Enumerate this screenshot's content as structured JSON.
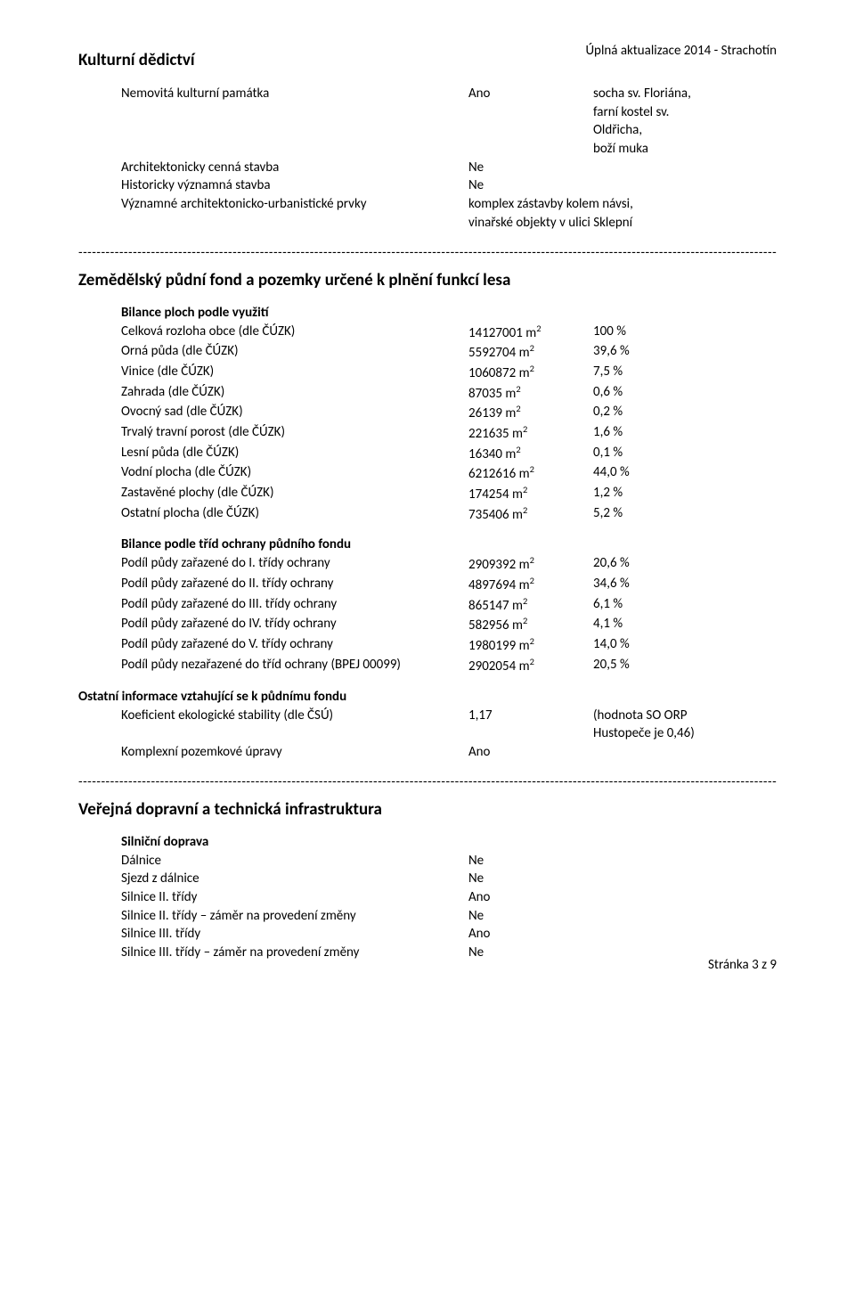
{
  "header_right": "Úplná aktualizace 2014 - Strachotín",
  "footer_right": "Stránka 3 z 9",
  "divider": "--------------------------------------------------------------------------------------------------------------------------------------------------------------",
  "kulturni": {
    "title": "Kulturní dědictví",
    "r1_label": "Nemovitá kulturní památka",
    "r1_mid": "Ano",
    "r1_right_1": "socha sv. Floriána,",
    "r1_right_2": "farní kostel sv.",
    "r1_right_3": "Oldřicha,",
    "r1_right_4": "boží muka",
    "r2_label": "Architektonicky cenná stavba",
    "r2_mid": "Ne",
    "r3_label": "Historicky významná stavba",
    "r3_mid": "Ne",
    "r4_label": "Významné architektonicko-urbanistické prvky",
    "r4_mid_1": "komplex zástavby kolem návsi,",
    "r4_mid_2": "vinařské objekty v ulici Sklepní"
  },
  "zem": {
    "title": "Zemědělský půdní fond a pozemky určené k plnění funkcí lesa",
    "bilance1_head": "Bilance ploch podle využití",
    "rows1": [
      {
        "label": "Celková rozloha obce (dle ČÚZK)",
        "val": "14127001 m",
        "pct": "100 %"
      },
      {
        "label": "Orná půda (dle ČÚZK)",
        "val": "5592704 m",
        "pct": "39,6 %"
      },
      {
        "label": "Vinice (dle ČÚZK)",
        "val": "1060872 m",
        "pct": "7,5 %"
      },
      {
        "label": "Zahrada (dle ČÚZK)",
        "val": "87035 m",
        "pct": "0,6 %"
      },
      {
        "label": "Ovocný sad (dle ČÚZK)",
        "val": "26139 m",
        "pct": "0,2 %"
      },
      {
        "label": "Trvalý travní porost (dle ČÚZK)",
        "val": "221635 m",
        "pct": "1,6 %"
      },
      {
        "label": "Lesní půda (dle ČÚZK)",
        "val": "16340 m",
        "pct": "0,1 %"
      },
      {
        "label": "Vodní plocha (dle ČÚZK)",
        "val": "6212616 m",
        "pct": "44,0 %"
      },
      {
        "label": "Zastavěné plochy (dle ČÚZK)",
        "val": "174254 m",
        "pct": "1,2 %"
      },
      {
        "label": "Ostatní plocha (dle ČÚZK)",
        "val": "735406 m",
        "pct": "5,2 %"
      }
    ],
    "bilance2_head": "Bilance podle tříd ochrany půdního fondu",
    "rows2": [
      {
        "label": "Podíl půdy zařazené do I. třídy ochrany",
        "val": "2909392 m",
        "pct": "20,6 %"
      },
      {
        "label": "Podíl půdy zařazené do II. třídy ochrany",
        "val": "4897694 m",
        "pct": "34,6 %"
      },
      {
        "label": "Podíl půdy zařazené do III. třídy ochrany",
        "val": "865147 m",
        "pct": "6,1 %"
      },
      {
        "label": "Podíl půdy zařazené do IV. třídy ochrany",
        "val": "582956 m",
        "pct": "4,1 %"
      },
      {
        "label": "Podíl půdy zařazené do V. třídy ochrany",
        "val": "1980199 m",
        "pct": "14,0 %"
      },
      {
        "label": "Podíl půdy nezařazené do tříd ochrany (BPEJ 00099)",
        "val": "2902054 m",
        "pct": "20,5 %"
      }
    ],
    "ostatni_head": "Ostatní informace vztahující se k půdnímu fondu",
    "koef_label": "Koeficient ekologické stability (dle ČSÚ)",
    "koef_val": "1,17",
    "koef_right_1": "(hodnota SO ORP",
    "koef_right_2": "Hustopeče je 0,46)",
    "komplex_label": "Komplexní pozemkové úpravy",
    "komplex_val": "Ano"
  },
  "doprava": {
    "title": "Veřejná dopravní a technická infrastruktura",
    "subhead": "Silniční doprava",
    "rows": [
      {
        "label": "Dálnice",
        "val": "Ne"
      },
      {
        "label": "Sjezd z dálnice",
        "val": "Ne"
      },
      {
        "label": "Silnice II. třídy",
        "val": "Ano"
      },
      {
        "label": "Silnice II. třídy – záměr na provedení změny",
        "val": "Ne"
      },
      {
        "label": "Silnice III. třídy",
        "val": "Ano"
      },
      {
        "label": "Silnice III. třídy – záměr na provedení změny",
        "val": "Ne"
      }
    ]
  }
}
